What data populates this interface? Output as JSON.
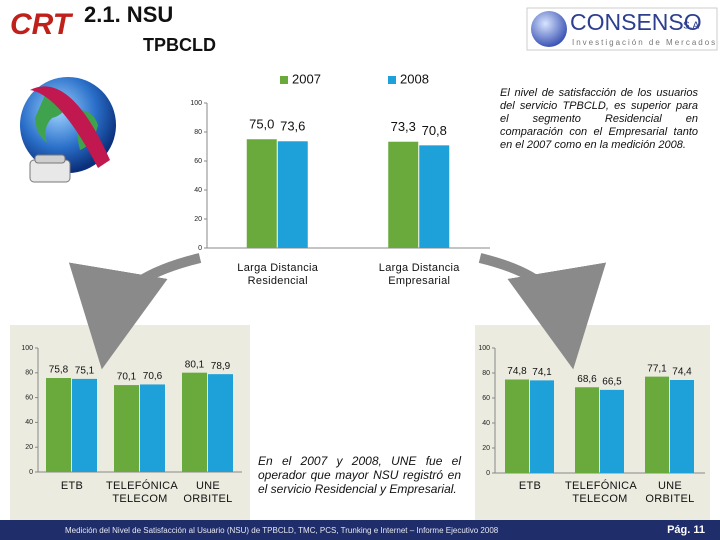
{
  "header": {
    "title": "2.1. NSU",
    "subtitle": "TPBCLD"
  },
  "logos": {
    "left": "CRT",
    "right": "CONSENSO",
    "right_suffix": "S.A",
    "right_tagline": "Investigación de Mercados"
  },
  "notes": [
    "El nivel de satisfacción de los usuarios del servicio TPBCLD, es superior para el segmento Residencial en comparación con el Empresarial tanto en el 2007 como en la medición 2008.",
    "En el 2007 y 2008, UNE fue el operador que mayor NSU registró en el servicio Residencial y Empresarial."
  ],
  "footer": {
    "text": "Medición del Nivel de Satisfacción al Usuario (NSU) de TPBCLD, TMC, PCS, Trunking e Internet – Informe Ejecutivo 2008",
    "page": "Pág. 11"
  },
  "chart_data": [
    {
      "type": "bar",
      "legend": "top",
      "categories": [
        "Larga Distancia Residencial",
        "Larga Distancia Empresarial"
      ],
      "series": [
        {
          "name": "2007",
          "color": "#6aaa3c",
          "values": [
            75.0,
            73.3
          ],
          "value_labels": [
            "75,0",
            "73,3"
          ]
        },
        {
          "name": "2008",
          "color": "#1ea0d8",
          "values": [
            73.6,
            70.8
          ],
          "value_labels": [
            "73,6",
            "70,8"
          ]
        }
      ],
      "ylim": [
        0,
        100
      ],
      "yticks": [
        0,
        20,
        40,
        60,
        80,
        100
      ]
    },
    {
      "type": "bar",
      "categories": [
        "ETB",
        "TELEFÓNICA TELECOM",
        "UNE ORBITEL"
      ],
      "series": [
        {
          "name": "2007",
          "color": "#6aaa3c",
          "values": [
            75.8,
            70.1,
            80.1
          ],
          "value_labels": [
            "75,8",
            "70,1",
            "80,1"
          ]
        },
        {
          "name": "2008",
          "color": "#1ea0d8",
          "values": [
            75.1,
            70.6,
            78.9
          ],
          "value_labels": [
            "75,1",
            "70,6",
            "78,9"
          ]
        }
      ],
      "ylim": [
        0,
        100
      ],
      "yticks": [
        0,
        20,
        40,
        60,
        80,
        100
      ]
    },
    {
      "type": "bar",
      "categories": [
        "ETB",
        "TELEFÓNICA TELECOM",
        "UNE ORBITEL"
      ],
      "series": [
        {
          "name": "2007",
          "color": "#6aaa3c",
          "values": [
            74.8,
            68.6,
            77.1
          ],
          "value_labels": [
            "74,8",
            "68,6",
            "77,1"
          ]
        },
        {
          "name": "2008",
          "color": "#1ea0d8",
          "values": [
            74.1,
            66.5,
            74.4
          ],
          "value_labels": [
            "74,1",
            "66,5",
            "74,4"
          ]
        }
      ],
      "ylim": [
        0,
        100
      ],
      "yticks": [
        0,
        20,
        40,
        60,
        80,
        100
      ]
    }
  ]
}
